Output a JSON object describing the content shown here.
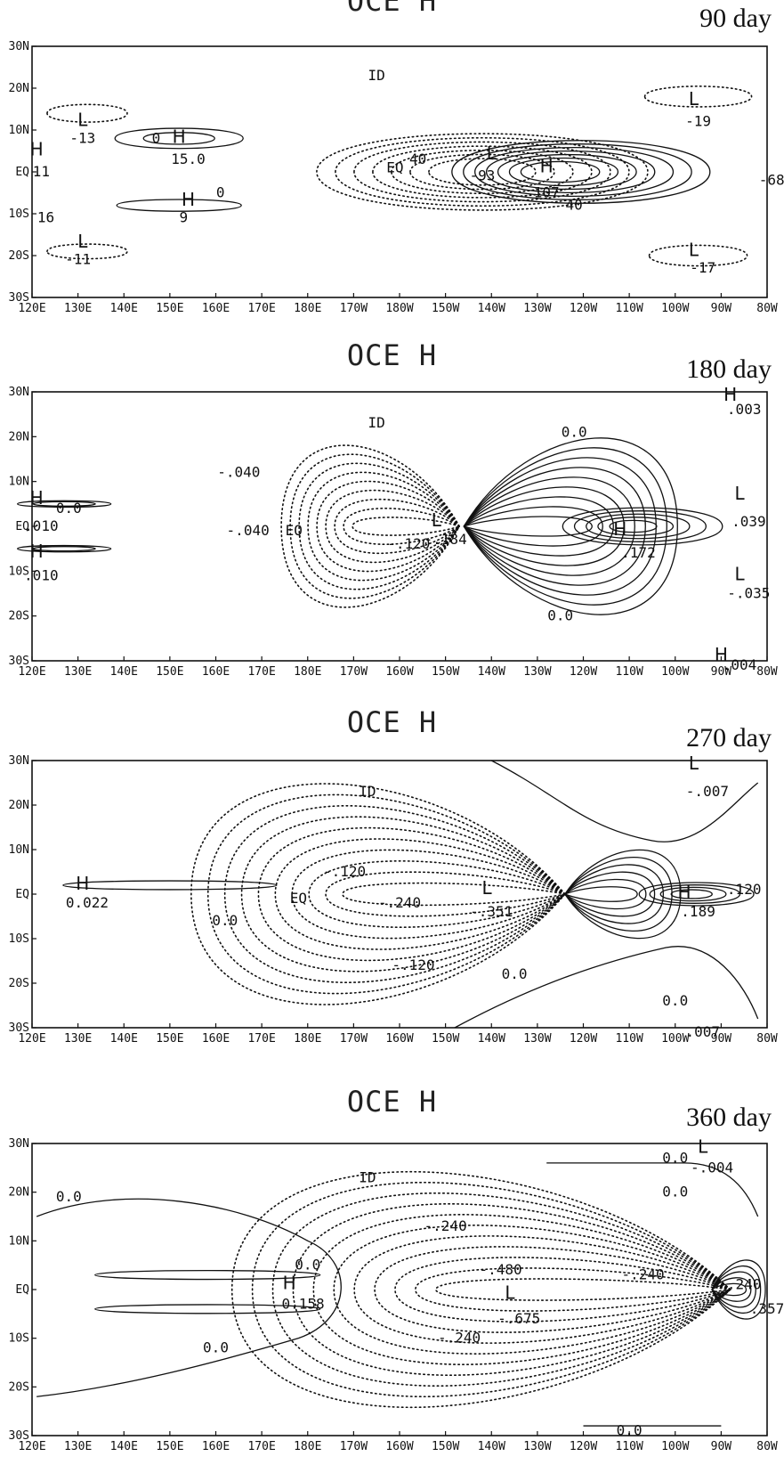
{
  "chart_data": [
    {
      "type": "contour",
      "title": "OCE H",
      "subtitle": "90 day",
      "x_ticks": [
        "120E",
        "130E",
        "140E",
        "150E",
        "160E",
        "170E",
        "180E",
        "170W",
        "180W",
        "150W",
        "140W",
        "130W",
        "120W",
        "110W",
        "100W",
        "90W",
        "80W"
      ],
      "y_ticks": [
        "30N",
        "20N",
        "10N",
        "EQ",
        "10S",
        "20S",
        "30S"
      ],
      "xlim": [
        120,
        280
      ],
      "ylim": [
        -30,
        30
      ],
      "annotations": [
        {
          "text": "ID",
          "lon": 195,
          "lat": 23
        },
        {
          "text": "EQ",
          "lon": 199,
          "lat": 1
        },
        {
          "text": "L",
          "lon": 131,
          "lat": 12
        },
        {
          "text": "-13",
          "lon": 131,
          "lat": 8
        },
        {
          "text": "H",
          "lon": 152,
          "lat": 8
        },
        {
          "text": "15.0",
          "lon": 154,
          "lat": 3
        },
        {
          "text": "H",
          "lon": 121,
          "lat": 5
        },
        {
          "text": "11",
          "lon": 122,
          "lat": 0
        },
        {
          "text": "H",
          "lon": 154,
          "lat": -7
        },
        {
          "text": "9",
          "lon": 153,
          "lat": -11
        },
        {
          "text": "L",
          "lon": 131,
          "lat": -17
        },
        {
          "text": "-11",
          "lon": 130,
          "lat": -21
        },
        {
          "text": "16",
          "lon": 123,
          "lat": -11
        },
        {
          "text": "L",
          "lon": 220,
          "lat": 4
        },
        {
          "text": "-93",
          "lon": 218,
          "lat": -1
        },
        {
          "text": "H",
          "lon": 232,
          "lat": 1
        },
        {
          "text": "107",
          "lon": 232,
          "lat": -5
        },
        {
          "text": "L",
          "lon": 264,
          "lat": 17
        },
        {
          "text": "-19",
          "lon": 265,
          "lat": 12
        },
        {
          "text": "L",
          "lon": 264,
          "lat": -19
        },
        {
          "text": "-17",
          "lon": 266,
          "lat": -23
        },
        {
          "text": "-68",
          "lon": 281,
          "lat": -2
        },
        {
          "text": "0",
          "lon": 147,
          "lat": 8
        },
        {
          "text": "0",
          "lon": 161,
          "lat": -5
        },
        {
          "text": "40",
          "lon": 204,
          "lat": 3
        },
        {
          "text": "40",
          "lon": 238,
          "lat": -8
        }
      ],
      "contour_style": {
        "positive": "solid",
        "negative": "dotted"
      }
    },
    {
      "type": "contour",
      "title": "OCE H",
      "subtitle": "180 day",
      "x_ticks": [
        "120E",
        "130E",
        "140E",
        "150E",
        "160E",
        "170E",
        "180E",
        "170W",
        "160W",
        "150W",
        "140W",
        "130W",
        "120W",
        "110W",
        "100W",
        "90W",
        "80W"
      ],
      "y_ticks": [
        "30N",
        "20N",
        "10N",
        "EQ",
        "10S",
        "20S",
        "30S"
      ],
      "xlim": [
        120,
        280
      ],
      "ylim": [
        -30,
        30
      ],
      "annotations": [
        {
          "text": "ID",
          "lon": 195,
          "lat": 23
        },
        {
          "text": "EQ",
          "lon": 177,
          "lat": -1
        },
        {
          "text": "H",
          "lon": 121,
          "lat": 6
        },
        {
          "text": "H",
          "lon": 121,
          "lat": -6
        },
        {
          "text": ".010",
          "lon": 122,
          "lat": 0
        },
        {
          "text": ".010",
          "lon": 122,
          "lat": -11
        },
        {
          "text": "-.040",
          "lon": 165,
          "lat": 12
        },
        {
          "text": "-.040",
          "lon": 167,
          "lat": -1
        },
        {
          "text": "-.120",
          "lon": 202,
          "lat": -4
        },
        {
          "text": "L",
          "lon": 208,
          "lat": 1
        },
        {
          "text": "-.184",
          "lon": 210,
          "lat": -3
        },
        {
          "text": "H",
          "lon": 248,
          "lat": -1
        },
        {
          "text": ".172",
          "lon": 252,
          "lat": -6
        },
        {
          "text": "0.0",
          "lon": 238,
          "lat": 21
        },
        {
          "text": "0.0",
          "lon": 235,
          "lat": -20
        },
        {
          "text": "0.0",
          "lon": 128,
          "lat": 4
        },
        {
          "text": "H",
          "lon": 272,
          "lat": 29
        },
        {
          "text": ".003",
          "lon": 275,
          "lat": 26
        },
        {
          "text": "L",
          "lon": 274,
          "lat": 7
        },
        {
          "text": ".039",
          "lon": 276,
          "lat": 1
        },
        {
          "text": "L",
          "lon": 274,
          "lat": -11
        },
        {
          "text": "-.035",
          "lon": 276,
          "lat": -15
        },
        {
          "text": "H",
          "lon": 270,
          "lat": -29
        },
        {
          "text": ".004",
          "lon": 274,
          "lat": -31
        }
      ],
      "contour_style": {
        "positive": "solid",
        "negative": "dotted"
      }
    },
    {
      "type": "contour",
      "title": "OCE H",
      "subtitle": "270 day",
      "x_ticks": [
        "120E",
        "130E",
        "140E",
        "150E",
        "160E",
        "170E",
        "180E",
        "170W",
        "160W",
        "150W",
        "140W",
        "130W",
        "120W",
        "110W",
        "100W",
        "90W",
        "80W"
      ],
      "y_ticks": [
        "30N",
        "20N",
        "10N",
        "EQ",
        "10S",
        "20S",
        "30S"
      ],
      "xlim": [
        120,
        280
      ],
      "ylim": [
        -30,
        30
      ],
      "annotations": [
        {
          "text": "ID",
          "lon": 193,
          "lat": 23
        },
        {
          "text": "EQ",
          "lon": 178,
          "lat": -1
        },
        {
          "text": "H",
          "lon": 131,
          "lat": 2
        },
        {
          "text": "0.022",
          "lon": 132,
          "lat": -2
        },
        {
          "text": "0.0",
          "lon": 162,
          "lat": -6
        },
        {
          "text": "-.120",
          "lon": 188,
          "lat": 5
        },
        {
          "text": "-.240",
          "lon": 200,
          "lat": -2
        },
        {
          "text": "L",
          "lon": 219,
          "lat": 1
        },
        {
          "text": "-.351",
          "lon": 220,
          "lat": -4
        },
        {
          "text": "-.120",
          "lon": 203,
          "lat": -16
        },
        {
          "text": "H",
          "lon": 262,
          "lat": 0
        },
        {
          "text": ".189",
          "lon": 265,
          "lat": -4
        },
        {
          "text": ".120",
          "lon": 275,
          "lat": 1
        },
        {
          "text": "L",
          "lon": 264,
          "lat": 29
        },
        {
          "text": "-.007",
          "lon": 267,
          "lat": 23
        },
        {
          "text": "0.0",
          "lon": 225,
          "lat": -18
        },
        {
          "text": "0.0",
          "lon": 260,
          "lat": -24
        },
        {
          "text": ".007",
          "lon": 266,
          "lat": -31
        }
      ],
      "contour_style": {
        "positive": "solid",
        "negative": "dotted"
      }
    },
    {
      "type": "contour",
      "title": "OCE H",
      "subtitle": "360 day",
      "x_ticks": [
        "120E",
        "130E",
        "140E",
        "150E",
        "160E",
        "170E",
        "180E",
        "170W",
        "160W",
        "150W",
        "140W",
        "130W",
        "120W",
        "110W",
        "100W",
        "90W",
        "80W"
      ],
      "y_ticks": [
        "30N",
        "20N",
        "10N",
        "EQ",
        "10S",
        "20S",
        "30S"
      ],
      "xlim": [
        120,
        280
      ],
      "ylim": [
        -30,
        30
      ],
      "annotations": [
        {
          "text": "ID",
          "lon": 193,
          "lat": 23
        },
        {
          "text": "0.0",
          "lon": 128,
          "lat": 19
        },
        {
          "text": "0.0",
          "lon": 180,
          "lat": 5
        },
        {
          "text": "H",
          "lon": 176,
          "lat": 1
        },
        {
          "text": "0.158",
          "lon": 179,
          "lat": -3
        },
        {
          "text": "-.240",
          "lon": 210,
          "lat": 13
        },
        {
          "text": "-.480",
          "lon": 222,
          "lat": 4
        },
        {
          "text": "L",
          "lon": 224,
          "lat": -1
        },
        {
          "text": "-.675",
          "lon": 226,
          "lat": -6
        },
        {
          "text": "-.240",
          "lon": 213,
          "lat": -10
        },
        {
          "text": "-.240",
          "lon": 253,
          "lat": 3
        },
        {
          "text": "0.0",
          "lon": 160,
          "lat": -12
        },
        {
          "text": "L",
          "lon": 266,
          "lat": 29
        },
        {
          "text": "0.0",
          "lon": 260,
          "lat": 27
        },
        {
          "text": "-.004",
          "lon": 268,
          "lat": 25
        },
        {
          "text": "0.0",
          "lon": 260,
          "lat": 20
        },
        {
          "text": ".240",
          "lon": 275,
          "lat": 1
        },
        {
          "text": ".357",
          "lon": 280,
          "lat": -4
        },
        {
          "text": "0.0",
          "lon": 250,
          "lat": -29
        }
      ],
      "contour_style": {
        "positive": "solid",
        "negative": "dotted"
      }
    }
  ],
  "colors": {
    "ink": "#111111",
    "background": "#ffffff"
  }
}
